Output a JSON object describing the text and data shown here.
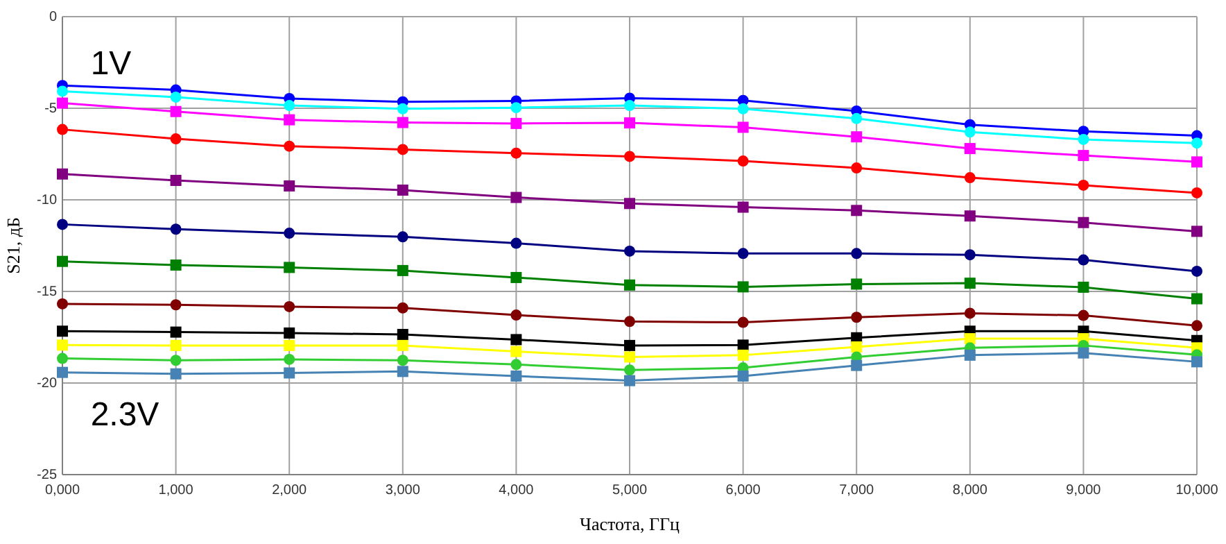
{
  "chart_data": {
    "type": "line",
    "xlabel": "Частота, ГГц",
    "ylabel": "S21, дБ",
    "categories": [
      "0,000",
      "1,000",
      "2,000",
      "3,000",
      "4,000",
      "5,000",
      "6,000",
      "7,000",
      "8,000",
      "9,000",
      "10,000"
    ],
    "ylim": [
      -25,
      0
    ],
    "yticks": [
      0,
      -5,
      -10,
      -15,
      -20,
      -25
    ],
    "grid": true,
    "annotations": [
      "1V",
      "2.3V"
    ],
    "series": [
      {
        "color": "#0000ff",
        "marker": "circle",
        "values": [
          -3.76,
          -4.0,
          -4.47,
          -4.65,
          -4.6,
          -4.45,
          -4.57,
          -5.15,
          -5.9,
          -6.26,
          -6.5
        ]
      },
      {
        "color": "#00ffff",
        "marker": "circle",
        "values": [
          -4.07,
          -4.39,
          -4.85,
          -5.03,
          -4.97,
          -4.85,
          -5.03,
          -5.56,
          -6.3,
          -6.7,
          -6.9
        ]
      },
      {
        "color": "#ff00ff",
        "marker": "square",
        "values": [
          -4.72,
          -5.18,
          -5.63,
          -5.78,
          -5.83,
          -5.8,
          -6.04,
          -6.56,
          -7.2,
          -7.58,
          -7.93
        ]
      },
      {
        "color": "#ff0000",
        "marker": "circle",
        "values": [
          -6.16,
          -6.67,
          -7.07,
          -7.25,
          -7.45,
          -7.63,
          -7.88,
          -8.26,
          -8.79,
          -9.2,
          -9.62
        ]
      },
      {
        "color": "#800080",
        "marker": "square",
        "values": [
          -8.59,
          -8.94,
          -9.24,
          -9.47,
          -9.87,
          -10.2,
          -10.4,
          -10.58,
          -10.88,
          -11.24,
          -11.72
        ]
      },
      {
        "color": "#000080",
        "marker": "circle",
        "values": [
          -11.34,
          -11.6,
          -11.82,
          -12.02,
          -12.37,
          -12.8,
          -12.93,
          -12.93,
          -13.0,
          -13.28,
          -13.9
        ]
      },
      {
        "color": "#008000",
        "marker": "square",
        "values": [
          -13.36,
          -13.56,
          -13.69,
          -13.86,
          -14.24,
          -14.65,
          -14.75,
          -14.6,
          -14.55,
          -14.77,
          -15.4
        ]
      },
      {
        "color": "#800000",
        "marker": "circle",
        "values": [
          -15.68,
          -15.73,
          -15.83,
          -15.9,
          -16.29,
          -16.64,
          -16.69,
          -16.41,
          -16.19,
          -16.31,
          -16.87
        ]
      },
      {
        "color": "#000000",
        "marker": "square",
        "values": [
          -17.17,
          -17.22,
          -17.27,
          -17.35,
          -17.63,
          -17.95,
          -17.93,
          -17.53,
          -17.17,
          -17.17,
          -17.68
        ]
      },
      {
        "color": "#ffff00",
        "marker": "square",
        "values": [
          -17.93,
          -17.95,
          -17.95,
          -17.95,
          -18.28,
          -18.58,
          -18.48,
          -18.03,
          -17.58,
          -17.58,
          -18.08
        ]
      },
      {
        "color": "#32cd32",
        "marker": "circle",
        "values": [
          -18.66,
          -18.76,
          -18.71,
          -18.76,
          -18.99,
          -19.29,
          -19.17,
          -18.58,
          -18.08,
          -17.95,
          -18.46
        ]
      },
      {
        "color": "#4682b4",
        "marker": "square",
        "values": [
          -19.42,
          -19.5,
          -19.45,
          -19.37,
          -19.62,
          -19.87,
          -19.62,
          -19.04,
          -18.48,
          -18.36,
          -18.84
        ]
      }
    ]
  }
}
